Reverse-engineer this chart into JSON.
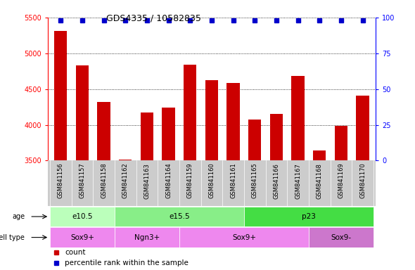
{
  "title": "GDS4335 / 10582835",
  "samples": [
    "GSM841156",
    "GSM841157",
    "GSM841158",
    "GSM841162",
    "GSM841163",
    "GSM841164",
    "GSM841159",
    "GSM841160",
    "GSM841161",
    "GSM841165",
    "GSM841166",
    "GSM841167",
    "GSM841168",
    "GSM841169",
    "GSM841170"
  ],
  "counts": [
    5310,
    4830,
    4320,
    3510,
    4170,
    4240,
    4840,
    4620,
    4590,
    4070,
    4150,
    4680,
    3640,
    3990,
    4410
  ],
  "ylim_left": [
    3500,
    5500
  ],
  "ylim_right": [
    0,
    100
  ],
  "yticks_left": [
    3500,
    4000,
    4500,
    5000,
    5500
  ],
  "yticks_right": [
    0,
    25,
    50,
    75,
    100
  ],
  "bar_color": "#cc0000",
  "dot_color": "#0000cc",
  "age_groups": [
    {
      "label": "e10.5",
      "start": 0,
      "end": 3,
      "color": "#bbffbb"
    },
    {
      "label": "e15.5",
      "start": 3,
      "end": 9,
      "color": "#88ee88"
    },
    {
      "label": "p23",
      "start": 9,
      "end": 15,
      "color": "#44dd44"
    }
  ],
  "cell_type_groups": [
    {
      "label": "Sox9+",
      "start": 0,
      "end": 3,
      "color": "#ee88ee"
    },
    {
      "label": "Ngn3+",
      "start": 3,
      "end": 6,
      "color": "#ee88ee"
    },
    {
      "label": "Sox9+",
      "start": 6,
      "end": 12,
      "color": "#ee88ee"
    },
    {
      "label": "Sox9-",
      "start": 12,
      "end": 15,
      "color": "#cc77cc"
    }
  ],
  "age_label": "age",
  "cell_type_label": "cell type",
  "legend_count_label": "count",
  "legend_pct_label": "percentile rank within the sample",
  "xtick_bg": "#cccccc",
  "plot_bg": "#ffffff",
  "fig_bg": "#ffffff"
}
